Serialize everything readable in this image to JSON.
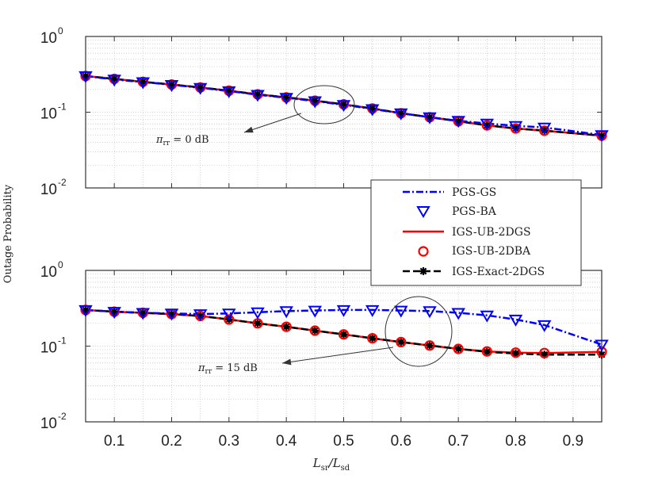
{
  "chart_data": [
    {
      "type": "line",
      "x": [
        0.05,
        0.1,
        0.15,
        0.2,
        0.25,
        0.3,
        0.35,
        0.4,
        0.45,
        0.5,
        0.55,
        0.6,
        0.65,
        0.7,
        0.75,
        0.8,
        0.85,
        0.95
      ],
      "xlim": [
        0.05,
        0.95
      ],
      "ylim": [
        0.01,
        1
      ],
      "yscale": "log",
      "grid": true,
      "xlabel": "",
      "annotation": {
        "label": "π",
        "sub": "rr",
        "rest": " = 0 dB"
      },
      "series": [
        {
          "name": "PGS-GS",
          "color": "#0000ff",
          "values": [
            0.3,
            0.27,
            0.25,
            0.23,
            0.21,
            0.19,
            0.17,
            0.155,
            0.14,
            0.125,
            0.11,
            0.097,
            0.086,
            0.077,
            0.071,
            0.066,
            0.063,
            0.05
          ]
        },
        {
          "name": "PGS-BA",
          "color": "#0000ff",
          "values": [
            0.3,
            0.27,
            0.25,
            0.23,
            0.21,
            0.19,
            0.17,
            0.155,
            0.14,
            0.125,
            0.11,
            0.097,
            0.086,
            0.077,
            0.071,
            0.066,
            0.063,
            0.05
          ]
        },
        {
          "name": "IGS-UB-2DGS",
          "color": "#ff0000",
          "values": [
            0.3,
            0.275,
            0.252,
            0.232,
            0.212,
            0.192,
            0.172,
            0.157,
            0.142,
            0.127,
            0.112,
            0.097,
            0.086,
            0.076,
            0.067,
            0.061,
            0.057,
            0.049
          ]
        },
        {
          "name": "IGS-UB-2DBA",
          "color": "#ff0000",
          "values": [
            0.3,
            0.275,
            0.252,
            0.232,
            0.212,
            0.192,
            0.172,
            0.157,
            0.142,
            0.127,
            0.112,
            0.097,
            0.086,
            0.076,
            0.067,
            0.061,
            0.057,
            0.049
          ]
        },
        {
          "name": "IGS-Exact-2DGS",
          "color": "#000000",
          "values": [
            0.3,
            0.275,
            0.252,
            0.232,
            0.212,
            0.192,
            0.172,
            0.157,
            0.142,
            0.127,
            0.112,
            0.097,
            0.086,
            0.076,
            0.067,
            0.061,
            0.057,
            0.049
          ]
        }
      ]
    },
    {
      "type": "line",
      "x": [
        0.05,
        0.1,
        0.15,
        0.2,
        0.25,
        0.3,
        0.35,
        0.4,
        0.45,
        0.5,
        0.55,
        0.6,
        0.65,
        0.7,
        0.75,
        0.8,
        0.85,
        0.95
      ],
      "xlim": [
        0.05,
        0.95
      ],
      "ylim": [
        0.01,
        1
      ],
      "yscale": "log",
      "grid": true,
      "annotation": {
        "label": "π",
        "sub": "rr",
        "rest": " = 15 dB"
      },
      "series": [
        {
          "name": "PGS-GS",
          "color": "#0000ff",
          "values": [
            0.3,
            0.285,
            0.275,
            0.27,
            0.265,
            0.27,
            0.28,
            0.29,
            0.295,
            0.3,
            0.3,
            0.295,
            0.29,
            0.275,
            0.255,
            0.225,
            0.19,
            0.105
          ]
        },
        {
          "name": "PGS-BA",
          "color": "#0000ff",
          "values": [
            0.3,
            0.285,
            0.275,
            0.27,
            0.265,
            0.27,
            0.28,
            0.29,
            0.295,
            0.3,
            0.3,
            0.295,
            0.29,
            0.275,
            0.255,
            0.225,
            0.19,
            0.105
          ]
        },
        {
          "name": "IGS-UB-2DGS",
          "color": "#ff0000",
          "values": [
            0.3,
            0.285,
            0.275,
            0.265,
            0.25,
            0.225,
            0.2,
            0.18,
            0.16,
            0.143,
            0.127,
            0.113,
            0.102,
            0.092,
            0.085,
            0.082,
            0.081,
            0.084
          ]
        },
        {
          "name": "IGS-UB-2DBA",
          "color": "#ff0000",
          "values": [
            0.3,
            0.285,
            0.275,
            0.265,
            0.25,
            0.225,
            0.2,
            0.18,
            0.16,
            0.143,
            0.127,
            0.113,
            0.102,
            0.092,
            0.085,
            0.082,
            0.081,
            0.084
          ]
        },
        {
          "name": "IGS-Exact-2DGS",
          "color": "#000000",
          "values": [
            0.3,
            0.285,
            0.275,
            0.265,
            0.25,
            0.225,
            0.2,
            0.18,
            0.16,
            0.143,
            0.127,
            0.113,
            0.102,
            0.092,
            0.084,
            0.08,
            0.077,
            0.077
          ]
        }
      ]
    }
  ],
  "labels": {
    "ylabel": "Outage Probability",
    "xlabel_main": "L",
    "xlabel_sub1": "sr",
    "xlabel_slash": "/L",
    "xlabel_sub2": "sd",
    "ytick_base": "10",
    "ytick_exps": [
      "0",
      "-1",
      "-2"
    ],
    "xticks": [
      "0.1",
      "0.2",
      "0.3",
      "0.4",
      "0.5",
      "0.6",
      "0.7",
      "0.8",
      "0.9"
    ]
  },
  "legend": {
    "items": [
      "PGS-GS",
      "PGS-BA",
      "IGS-UB-2DGS",
      "IGS-UB-2DBA",
      "IGS-Exact-2DGS"
    ]
  }
}
